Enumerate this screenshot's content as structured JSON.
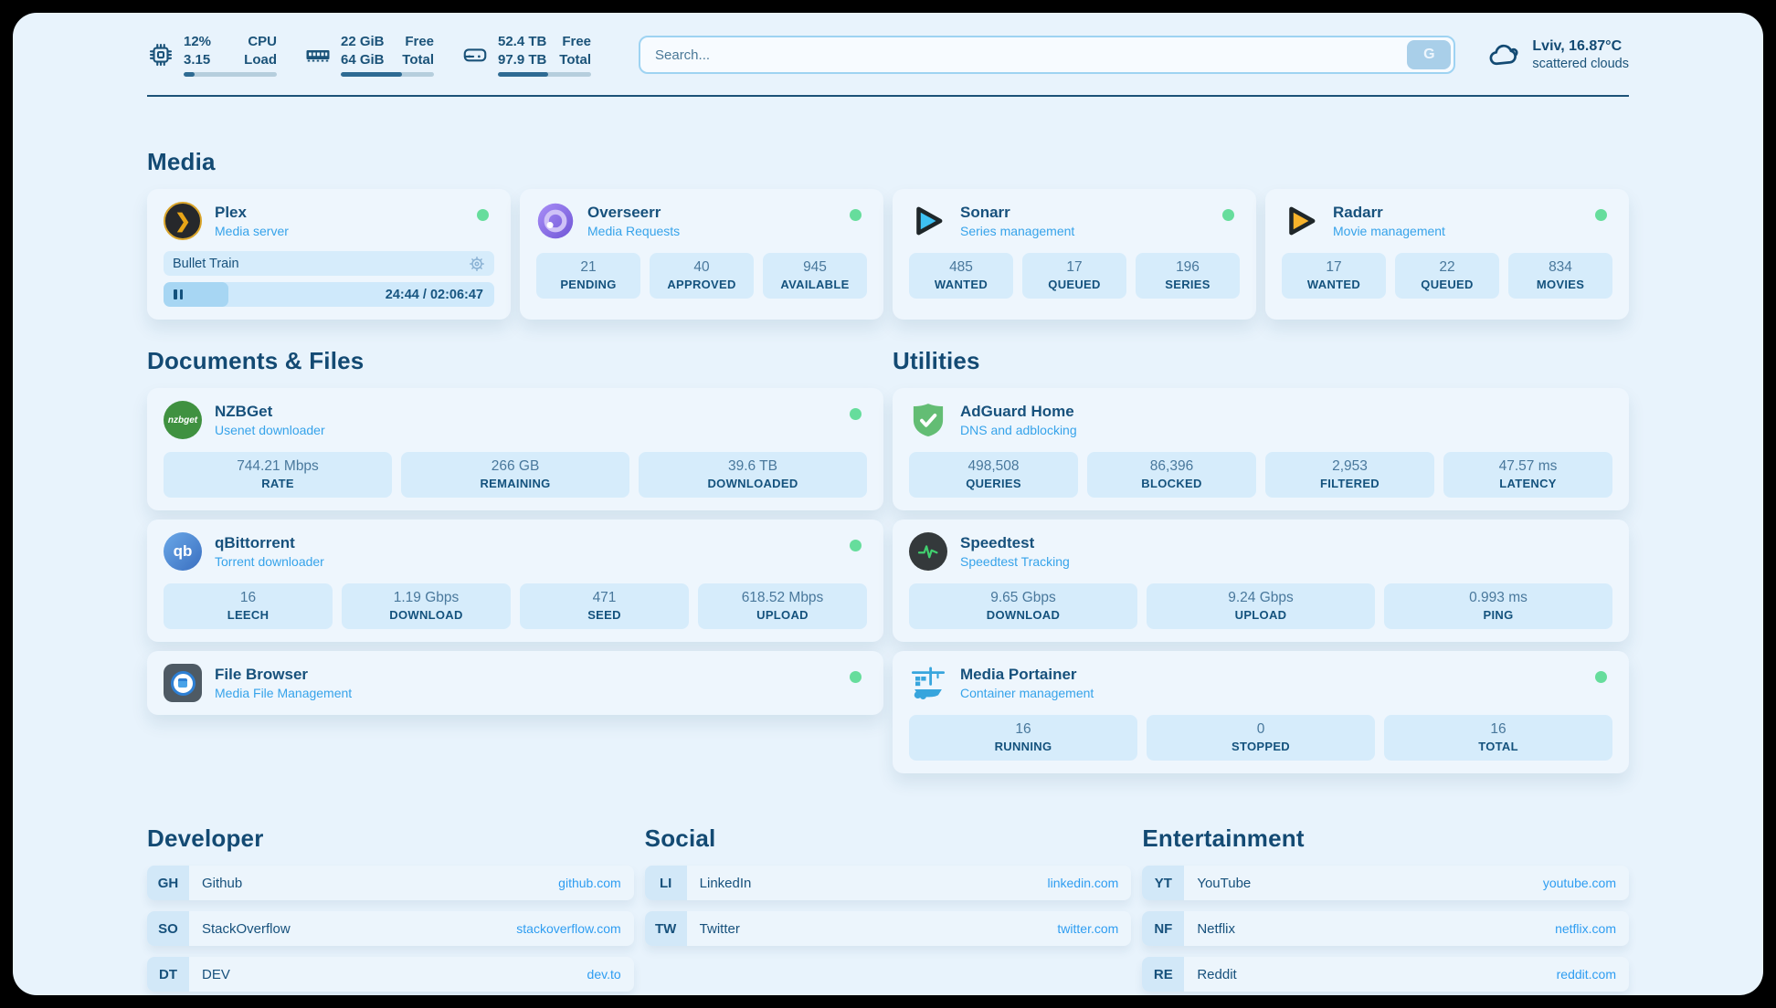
{
  "topbar": {
    "stats": [
      {
        "icon": "cpu-icon",
        "value_top": "12%",
        "value_bottom": "3.15",
        "label_top": "CPU",
        "label_bottom": "Load",
        "progress_pct": 12
      },
      {
        "icon": "ram-icon",
        "value_top": "22 GiB",
        "value_bottom": "64 GiB",
        "label_top": "Free",
        "label_bottom": "Total",
        "progress_pct": 66
      },
      {
        "icon": "disk-icon",
        "value_top": "52.4 TB",
        "value_bottom": "97.9 TB",
        "label_top": "Free",
        "label_bottom": "Total",
        "progress_pct": 54
      }
    ],
    "search": {
      "placeholder": "Search...",
      "provider_button": "G"
    },
    "weather": {
      "icon": "cloud-icon",
      "location_temp": "Lviv, 16.87°C",
      "condition": "scattered clouds"
    }
  },
  "media": {
    "title": "Media",
    "plex": {
      "title": "Plex",
      "subtitle": "Media server",
      "online": true,
      "now_playing": "Bullet Train",
      "elapsed_total": "24:44 / 02:06:47",
      "progress_pct": 19.5
    },
    "overseerr": {
      "title": "Overseerr",
      "subtitle": "Media Requests",
      "online": true,
      "stats": [
        {
          "value": "21",
          "label": "PENDING"
        },
        {
          "value": "40",
          "label": "APPROVED"
        },
        {
          "value": "945",
          "label": "AVAILABLE"
        }
      ]
    },
    "sonarr": {
      "title": "Sonarr",
      "subtitle": "Series management",
      "online": true,
      "stats": [
        {
          "value": "485",
          "label": "WANTED"
        },
        {
          "value": "17",
          "label": "QUEUED"
        },
        {
          "value": "196",
          "label": "SERIES"
        }
      ]
    },
    "radarr": {
      "title": "Radarr",
      "subtitle": "Movie management",
      "online": true,
      "stats": [
        {
          "value": "17",
          "label": "WANTED"
        },
        {
          "value": "22",
          "label": "QUEUED"
        },
        {
          "value": "834",
          "label": "MOVIES"
        }
      ]
    }
  },
  "documents": {
    "title": "Documents & Files",
    "nzbget": {
      "title": "NZBGet",
      "subtitle": "Usenet downloader",
      "online": true,
      "icon_text": "nzbget",
      "stats": [
        {
          "value": "744.21 Mbps",
          "label": "RATE"
        },
        {
          "value": "266 GB",
          "label": "REMAINING"
        },
        {
          "value": "39.6 TB",
          "label": "DOWNLOADED"
        }
      ]
    },
    "qbittorrent": {
      "title": "qBittorrent",
      "subtitle": "Torrent downloader",
      "online": true,
      "icon_text": "qb",
      "stats": [
        {
          "value": "16",
          "label": "LEECH"
        },
        {
          "value": "1.19 Gbps",
          "label": "DOWNLOAD"
        },
        {
          "value": "471",
          "label": "SEED"
        },
        {
          "value": "618.52 Mbps",
          "label": "UPLOAD"
        }
      ]
    },
    "filebrowser": {
      "title": "File Browser",
      "subtitle": "Media File Management",
      "online": true
    }
  },
  "utilities": {
    "title": "Utilities",
    "adguard": {
      "title": "AdGuard Home",
      "subtitle": "DNS and adblocking",
      "online": false,
      "stats": [
        {
          "value": "498,508",
          "label": "QUERIES"
        },
        {
          "value": "86,396",
          "label": "BLOCKED"
        },
        {
          "value": "2,953",
          "label": "FILTERED"
        },
        {
          "value": "47.57 ms",
          "label": "LATENCY"
        }
      ]
    },
    "speedtest": {
      "title": "Speedtest",
      "subtitle": "Speedtest Tracking",
      "online": false,
      "stats": [
        {
          "value": "9.65 Gbps",
          "label": "DOWNLOAD"
        },
        {
          "value": "9.24 Gbps",
          "label": "UPLOAD"
        },
        {
          "value": "0.993 ms",
          "label": "PING"
        }
      ]
    },
    "portainer": {
      "title": "Media Portainer",
      "subtitle": "Container management",
      "online": true,
      "stats": [
        {
          "value": "16",
          "label": "RUNNING"
        },
        {
          "value": "0",
          "label": "STOPPED"
        },
        {
          "value": "16",
          "label": "TOTAL"
        }
      ]
    }
  },
  "links": {
    "developer": {
      "title": "Developer",
      "items": [
        {
          "abbr": "GH",
          "name": "Github",
          "url": "github.com"
        },
        {
          "abbr": "SO",
          "name": "StackOverflow",
          "url": "stackoverflow.com"
        },
        {
          "abbr": "DT",
          "name": "DEV",
          "url": "dev.to"
        }
      ]
    },
    "social": {
      "title": "Social",
      "items": [
        {
          "abbr": "LI",
          "name": "LinkedIn",
          "url": "linkedin.com"
        },
        {
          "abbr": "TW",
          "name": "Twitter",
          "url": "twitter.com"
        }
      ]
    },
    "entertainment": {
      "title": "Entertainment",
      "items": [
        {
          "abbr": "YT",
          "name": "YouTube",
          "url": "youtube.com"
        },
        {
          "abbr": "NF",
          "name": "Netflix",
          "url": "netflix.com"
        },
        {
          "abbr": "RE",
          "name": "Reddit",
          "url": "reddit.com"
        }
      ]
    }
  },
  "colors": {
    "accent_blue": "#36a3ea",
    "navy": "#14527d",
    "status_online": "#66dd9c",
    "background": "#e8f3fc"
  }
}
